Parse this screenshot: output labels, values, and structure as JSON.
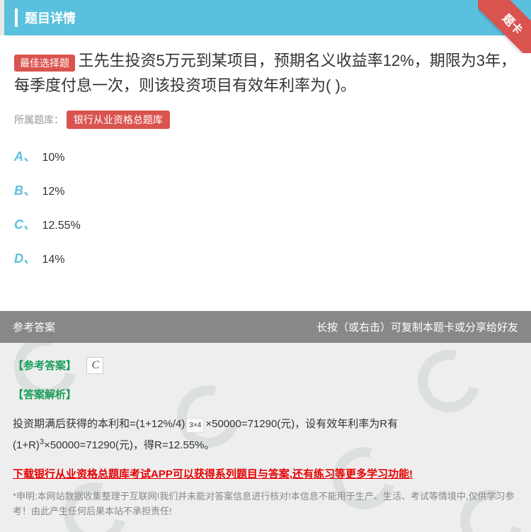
{
  "header": {
    "title": "题目详情",
    "ribbon": "题卡"
  },
  "question": {
    "badge": "最佳选择题",
    "text": "王先生投资5万元到某项目，预期名义收益率12%，期限为3年，每季度付息一次，则该投资项目有效年利率为( )。",
    "bank_label": "所属题库：",
    "bank_name": "银行从业资格总题库"
  },
  "options": [
    {
      "key": "A、",
      "text": "10%"
    },
    {
      "key": "B、",
      "text": "12%"
    },
    {
      "key": "C、",
      "text": "12.55%"
    },
    {
      "key": "D、",
      "text": "14%"
    }
  ],
  "answer": {
    "left_label": "参考答案",
    "right_label": "长按（或右击）可复制本题卡或分享给好友",
    "ref_label": "【参考答案】",
    "ref_value_display": "C",
    "analysis_label": "【答案解析】",
    "analysis_pre": "投资期满后获得的本利和=(1+12%/4)",
    "analysis_exp1": "3×4",
    "analysis_mid1": "×50000=71290(元)，设有效年利率为R有(1+R)",
    "analysis_exp2": "3",
    "analysis_mid2": "×50000=71290(元)，得R=12.55%。",
    "download_text": "下载银行从业资格总题库考试APP可以获得系列题目与答案,还有练习等更多学习功能!",
    "disclaimer": "*申明:本网站数据收集整理于互联网!我们并未能对答案信息进行核对!本信息不能用于生产、生活、考试等情境中,仅供学习参考！由此产生任何后果本站不承担责任!"
  },
  "colors": {
    "primary": "#5bc0de",
    "danger": "#d9534f",
    "green": "#1a9e5c",
    "gray_header": "#888888",
    "gray_body": "#eeeeee"
  }
}
